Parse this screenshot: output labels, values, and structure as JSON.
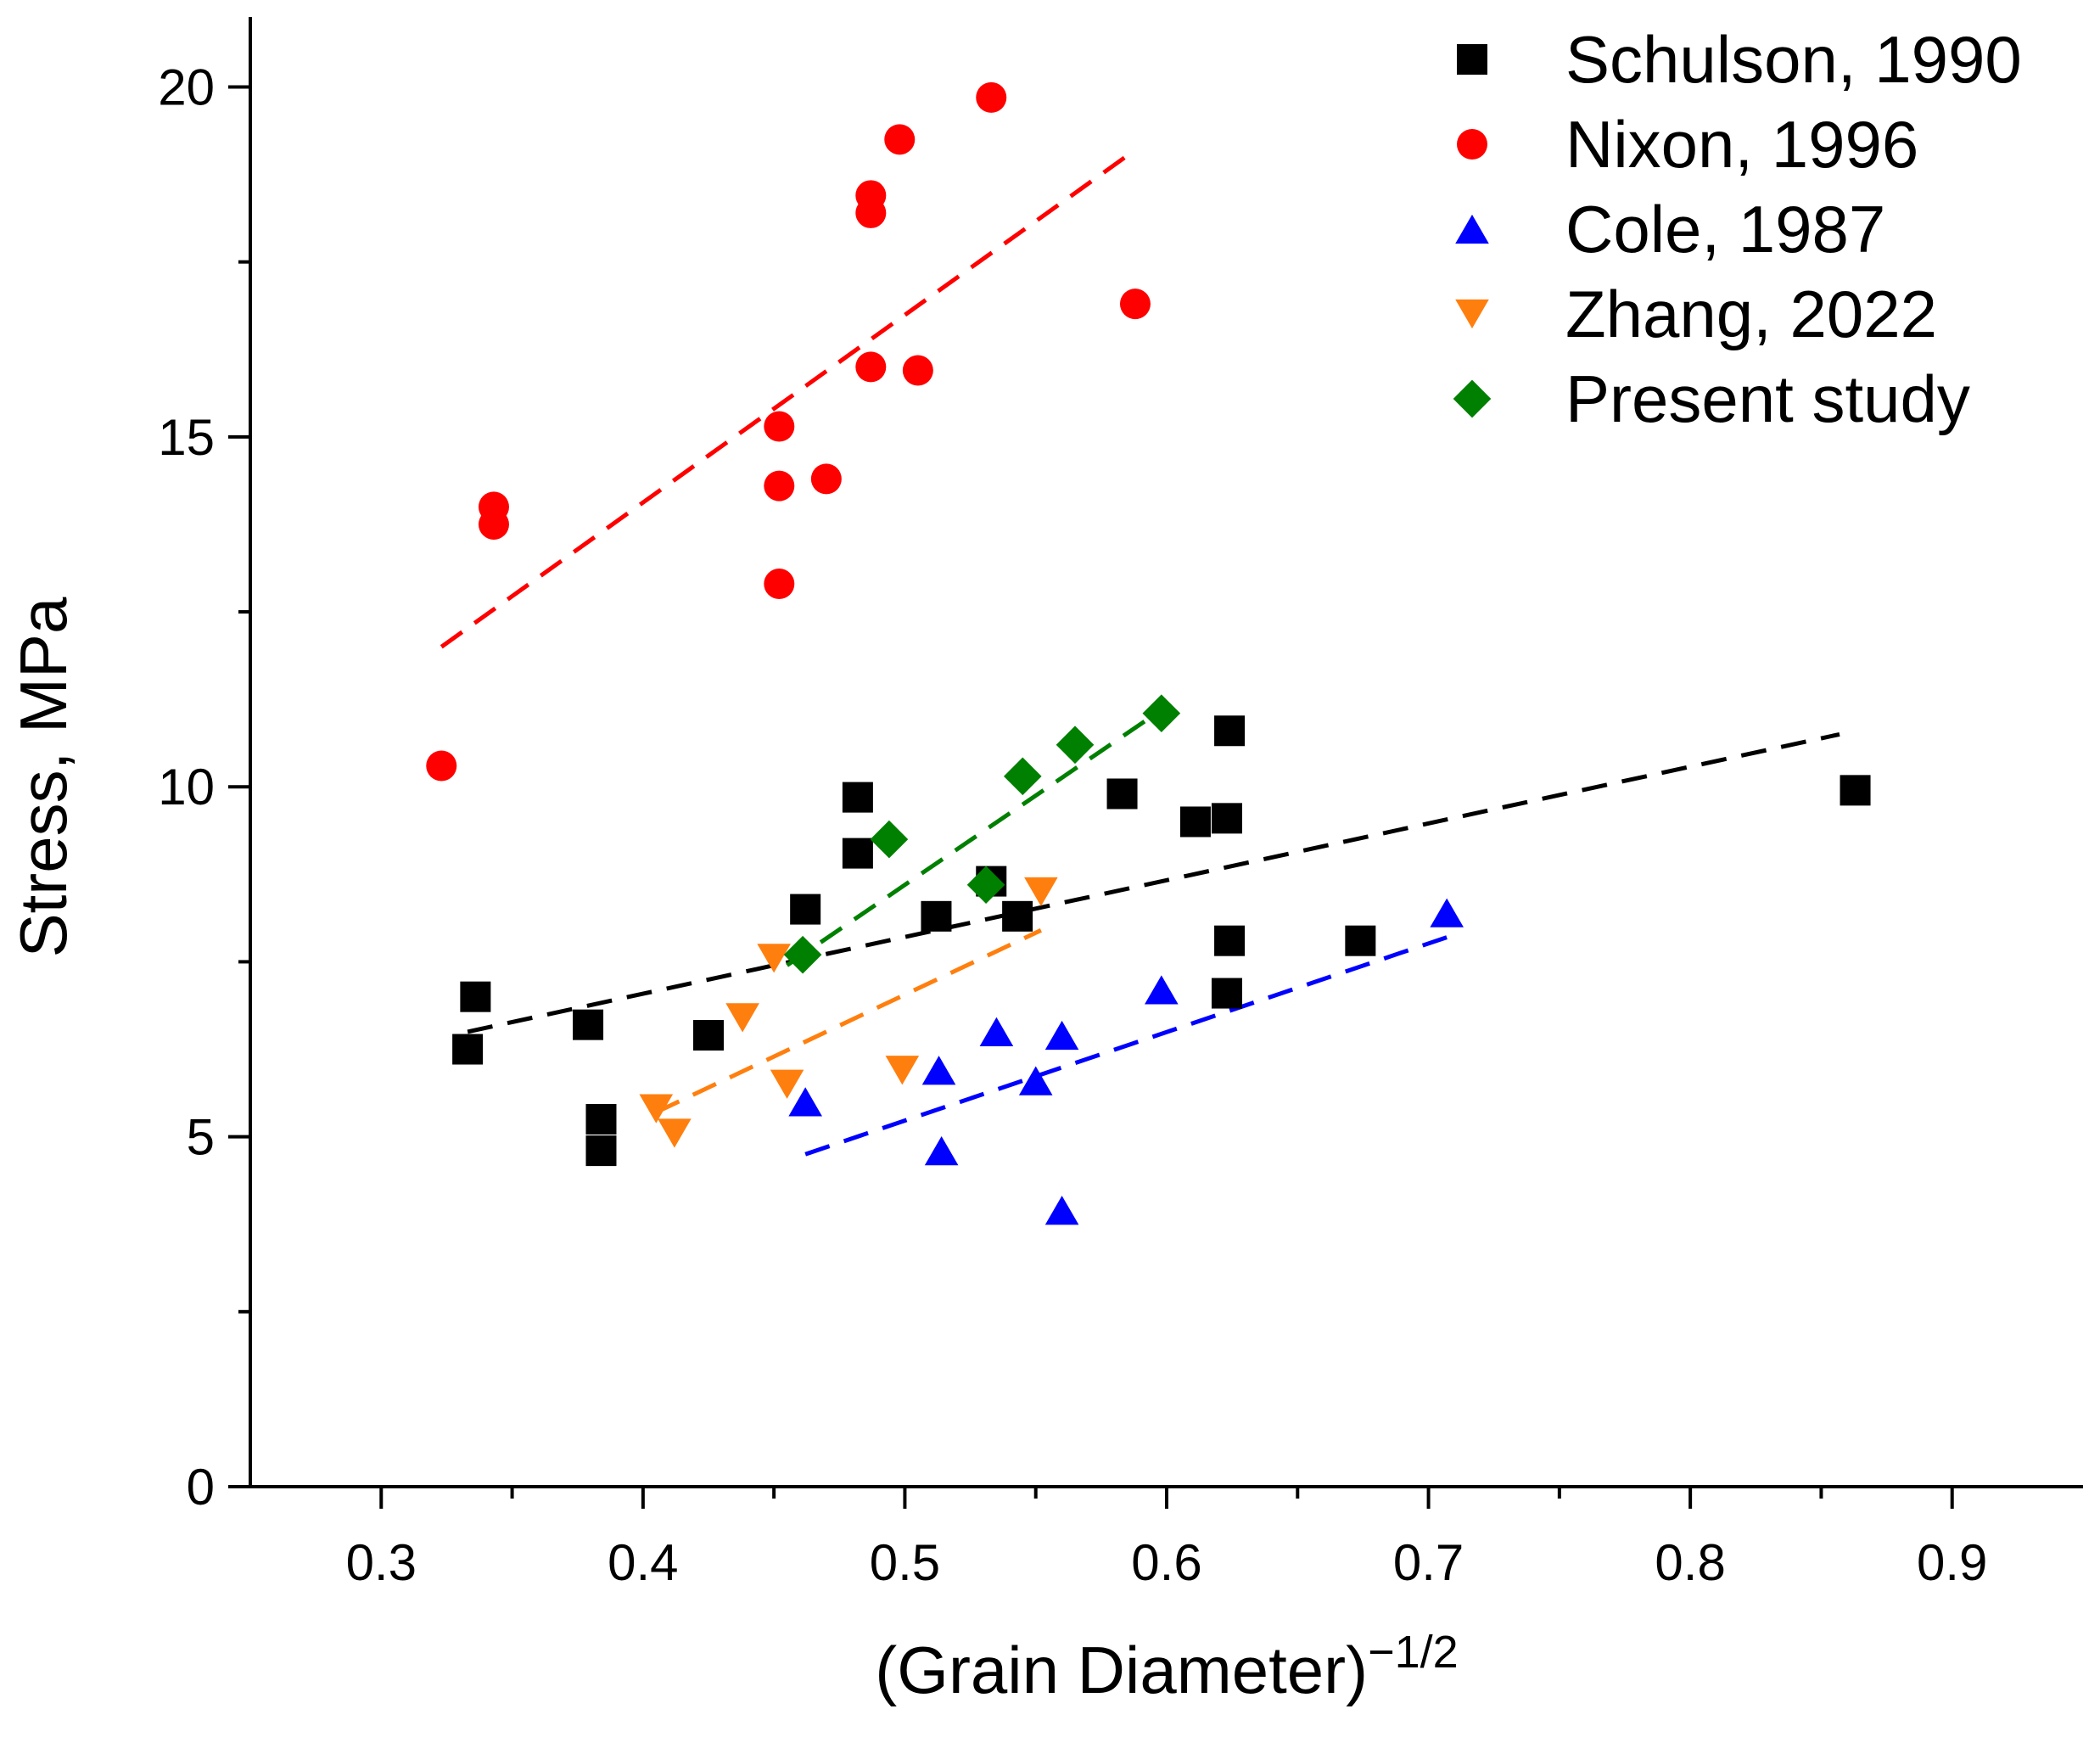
{
  "chart_data": {
    "type": "scatter",
    "title": "",
    "xlabel": "(Grain Diameter)",
    "xlabel_superscript": "−1/2",
    "ylabel": "Stress, MPa",
    "xlim": [
      0.25,
      0.95
    ],
    "ylim": [
      0,
      21
    ],
    "xticks": [
      0.3,
      0.4,
      0.5,
      0.6,
      0.7,
      0.8,
      0.9
    ],
    "xtick_labels": [
      "0.3",
      "0.4",
      "0.5",
      "0.6",
      "0.7",
      "0.8",
      "0.9"
    ],
    "yticks": [
      0,
      5,
      10,
      15,
      20
    ],
    "ytick_labels": [
      "0",
      "5",
      "10",
      "15",
      "20"
    ],
    "y_minor_ticks": [
      2.5,
      7.5,
      12.5,
      17.5
    ],
    "x_minor_ticks": [
      0.35,
      0.45,
      0.55,
      0.65,
      0.75,
      0.85
    ],
    "grid": false,
    "legend_position": "top-right",
    "series": [
      {
        "name": "Schulson, 1990",
        "marker": "square",
        "color": "#000000",
        "points": [
          [
            0.333,
            6.25
          ],
          [
            0.336,
            7.0
          ],
          [
            0.379,
            6.6
          ],
          [
            0.384,
            5.25
          ],
          [
            0.384,
            4.8
          ],
          [
            0.425,
            6.45
          ],
          [
            0.462,
            8.25
          ],
          [
            0.482,
            9.85
          ],
          [
            0.482,
            9.05
          ],
          [
            0.512,
            8.15
          ],
          [
            0.533,
            8.65
          ],
          [
            0.543,
            8.15
          ],
          [
            0.583,
            9.9
          ],
          [
            0.611,
            9.5
          ],
          [
            0.623,
            9.55
          ],
          [
            0.624,
            10.8
          ],
          [
            0.624,
            7.8
          ],
          [
            0.623,
            7.05
          ],
          [
            0.674,
            7.8
          ],
          [
            0.863,
            9.95
          ]
        ],
        "trend": [
          [
            0.333,
            6.5
          ],
          [
            0.857,
            10.75
          ]
        ]
      },
      {
        "name": "Nixon, 1996",
        "marker": "circle",
        "color": "#ff0000",
        "points": [
          [
            0.323,
            10.3
          ],
          [
            0.343,
            14.0
          ],
          [
            0.343,
            13.75
          ],
          [
            0.452,
            12.9
          ],
          [
            0.452,
            14.3
          ],
          [
            0.452,
            15.15
          ],
          [
            0.47,
            14.4
          ],
          [
            0.487,
            16.0
          ],
          [
            0.487,
            18.2
          ],
          [
            0.487,
            18.45
          ],
          [
            0.498,
            19.25
          ],
          [
            0.505,
            15.95
          ],
          [
            0.533,
            19.85
          ],
          [
            0.588,
            16.9
          ]
        ],
        "trend": [
          [
            0.323,
            12.0
          ],
          [
            0.588,
            19.1
          ]
        ]
      },
      {
        "name": "Cole, 1987",
        "marker": "triangle-up",
        "color": "#0000ff",
        "points": [
          [
            0.462,
            5.5
          ],
          [
            0.513,
            5.95
          ],
          [
            0.514,
            4.8
          ],
          [
            0.535,
            6.5
          ],
          [
            0.55,
            5.8
          ],
          [
            0.56,
            6.45
          ],
          [
            0.56,
            3.95
          ],
          [
            0.598,
            7.1
          ],
          [
            0.707,
            8.2
          ]
        ],
        "trend": [
          [
            0.462,
            4.75
          ],
          [
            0.707,
            7.85
          ]
        ]
      },
      {
        "name": "Zhang, 2022",
        "marker": "triangle-down",
        "color": "#ff7f0e",
        "points": [
          [
            0.405,
            5.4
          ],
          [
            0.412,
            5.05
          ],
          [
            0.438,
            6.7
          ],
          [
            0.45,
            7.55
          ],
          [
            0.455,
            5.75
          ],
          [
            0.499,
            5.95
          ],
          [
            0.552,
            8.5
          ]
        ],
        "trend": [
          [
            0.405,
            5.35
          ],
          [
            0.552,
            7.95
          ]
        ]
      },
      {
        "name": "Present study",
        "marker": "diamond",
        "color": "#008000",
        "points": [
          [
            0.461,
            7.6
          ],
          [
            0.494,
            9.25
          ],
          [
            0.531,
            8.6
          ],
          [
            0.545,
            10.15
          ],
          [
            0.565,
            10.6
          ],
          [
            0.598,
            11.05
          ]
        ],
        "trend": [
          [
            0.455,
            7.45
          ],
          [
            0.598,
            11.1
          ]
        ]
      }
    ]
  }
}
